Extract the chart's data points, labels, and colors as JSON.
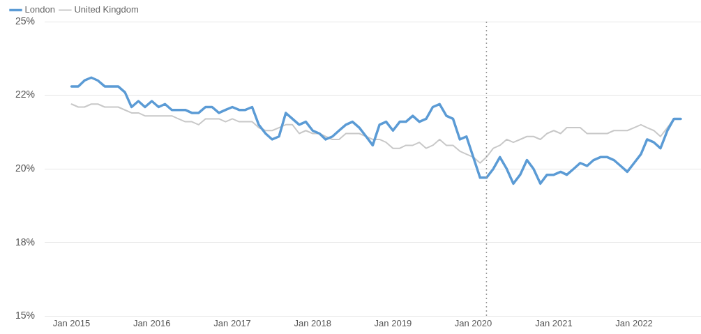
{
  "chart_data": {
    "type": "line",
    "x": [
      "2015-01",
      "2015-02",
      "2015-03",
      "2015-04",
      "2015-05",
      "2015-06",
      "2015-07",
      "2015-08",
      "2015-09",
      "2015-10",
      "2015-11",
      "2015-12",
      "2016-01",
      "2016-02",
      "2016-03",
      "2016-04",
      "2016-05",
      "2016-06",
      "2016-07",
      "2016-08",
      "2016-09",
      "2016-10",
      "2016-11",
      "2016-12",
      "2017-01",
      "2017-02",
      "2017-03",
      "2017-04",
      "2017-05",
      "2017-06",
      "2017-07",
      "2017-08",
      "2017-09",
      "2017-10",
      "2017-11",
      "2017-12",
      "2018-01",
      "2018-02",
      "2018-03",
      "2018-04",
      "2018-05",
      "2018-06",
      "2018-07",
      "2018-08",
      "2018-09",
      "2018-10",
      "2018-11",
      "2018-12",
      "2019-01",
      "2019-02",
      "2019-03",
      "2019-04",
      "2019-05",
      "2019-06",
      "2019-07",
      "2019-08",
      "2019-09",
      "2019-10",
      "2019-11",
      "2019-12",
      "2020-01",
      "2020-02",
      "2020-03",
      "2020-04",
      "2020-05",
      "2020-06",
      "2020-07",
      "2020-08",
      "2020-09",
      "2020-10",
      "2020-11",
      "2020-12",
      "2021-01",
      "2021-02",
      "2021-03",
      "2021-04",
      "2021-05",
      "2021-06",
      "2021-07",
      "2021-08",
      "2021-09",
      "2021-10",
      "2021-11",
      "2021-12",
      "2022-01",
      "2022-02",
      "2022-03",
      "2022-04",
      "2022-05",
      "2022-06",
      "2022-07",
      "2022-08"
    ],
    "series": [
      {
        "name": "London",
        "color": "#5b9bd5",
        "values": [
          22.8,
          22.8,
          23.0,
          23.1,
          23.0,
          22.8,
          22.8,
          22.8,
          22.6,
          22.1,
          22.3,
          22.1,
          22.3,
          22.1,
          22.2,
          22.0,
          22.0,
          22.0,
          21.9,
          21.9,
          22.1,
          22.1,
          21.9,
          22.0,
          22.1,
          22.0,
          22.0,
          22.1,
          21.5,
          21.2,
          21.0,
          21.1,
          21.9,
          21.7,
          21.5,
          21.6,
          21.3,
          21.2,
          21.0,
          21.1,
          21.3,
          21.5,
          21.6,
          21.4,
          21.1,
          20.8,
          21.5,
          21.6,
          21.3,
          21.6,
          21.6,
          21.8,
          21.6,
          21.7,
          22.1,
          22.2,
          21.8,
          21.7,
          21.0,
          21.1,
          20.4,
          19.7,
          19.7,
          20.0,
          20.4,
          20.0,
          19.5,
          19.8,
          20.3,
          20.0,
          19.5,
          19.8,
          19.8,
          19.9,
          19.8,
          20.0,
          20.2,
          20.1,
          20.3,
          20.4,
          20.4,
          20.3,
          20.1,
          19.9,
          20.2,
          20.5,
          21.0,
          20.9,
          20.7,
          21.3,
          21.7,
          21.7
        ]
      },
      {
        "name": "United Kingdom",
        "color": "#c8c8c8",
        "values": [
          22.2,
          22.1,
          22.1,
          22.2,
          22.2,
          22.1,
          22.1,
          22.1,
          22.0,
          21.9,
          21.9,
          21.8,
          21.8,
          21.8,
          21.8,
          21.8,
          21.7,
          21.6,
          21.6,
          21.5,
          21.7,
          21.7,
          21.7,
          21.6,
          21.7,
          21.6,
          21.6,
          21.6,
          21.4,
          21.3,
          21.3,
          21.4,
          21.5,
          21.5,
          21.2,
          21.3,
          21.2,
          21.2,
          21.1,
          21.0,
          21.0,
          21.2,
          21.2,
          21.2,
          21.1,
          21.0,
          21.0,
          20.9,
          20.7,
          20.7,
          20.8,
          20.8,
          20.9,
          20.7,
          20.8,
          21.0,
          20.8,
          20.8,
          20.6,
          20.5,
          20.4,
          20.2,
          20.4,
          20.7,
          20.8,
          21.0,
          20.9,
          21.0,
          21.1,
          21.1,
          21.0,
          21.2,
          21.3,
          21.2,
          21.4,
          21.4,
          21.4,
          21.2,
          21.2,
          21.2,
          21.2,
          21.3,
          21.3,
          21.3,
          21.4,
          21.5,
          21.4,
          21.3,
          21.1,
          21.4,
          21.7,
          null
        ]
      }
    ],
    "xlim": [
      "2014-09",
      "2022-11"
    ],
    "xticks": [
      {
        "value": "2015-01",
        "label": "Jan 2015"
      },
      {
        "value": "2016-01",
        "label": "Jan 2016"
      },
      {
        "value": "2017-01",
        "label": "Jan 2017"
      },
      {
        "value": "2018-01",
        "label": "Jan 2018"
      },
      {
        "value": "2019-01",
        "label": "Jan 2019"
      },
      {
        "value": "2020-01",
        "label": "Jan 2020"
      },
      {
        "value": "2021-01",
        "label": "Jan 2021"
      },
      {
        "value": "2022-01",
        "label": "Jan 2022"
      }
    ],
    "ylim": [
      15,
      25
    ],
    "yticks": [
      {
        "value": 15,
        "label": "15%"
      },
      {
        "value": 17.5,
        "label": "18%"
      },
      {
        "value": 20,
        "label": "20%"
      },
      {
        "value": 22.5,
        "label": "22%"
      },
      {
        "value": 25,
        "label": "25%"
      }
    ],
    "ref_lines": [
      {
        "axis": "x",
        "value": "2020-03",
        "color": "#999999",
        "line_style": "dotted"
      }
    ],
    "grid": "y",
    "legend": "top left",
    "marker": "none",
    "line_style": "solid"
  }
}
